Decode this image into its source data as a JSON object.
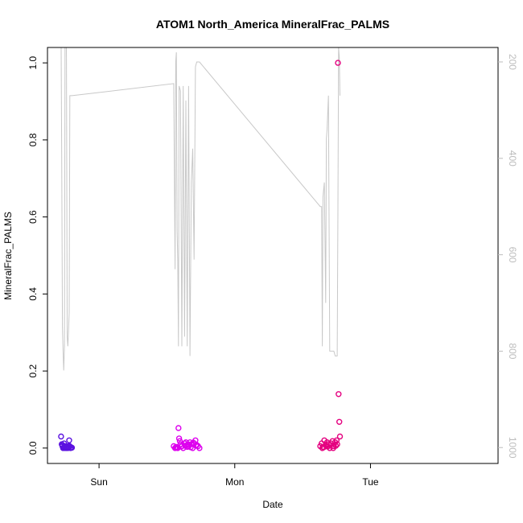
{
  "chart_data": {
    "type": "scatter",
    "title": "ATOM1 North_America MineralFrac_PALMS",
    "xlabel": "Date",
    "ylabel": "MineralFrac_PALMS",
    "x_tick_labels": [
      "Sun",
      "Mon",
      "Tue"
    ],
    "x_tick_values": [
      1,
      2,
      3
    ],
    "xlim": [
      0.62,
      3.94
    ],
    "ylim": [
      -0.04,
      1.04
    ],
    "y_ticks": [
      "0.0",
      "0.2",
      "0.4",
      "0.6",
      "0.8",
      "1.0"
    ],
    "y_tick_values": [
      0,
      0.2,
      0.4,
      0.6,
      0.8,
      1.0
    ],
    "right_axis": {
      "label": "",
      "ticks": [
        "200",
        "400",
        "600",
        "800",
        "1000"
      ],
      "tick_values": [
        200,
        400,
        600,
        800,
        1000
      ],
      "reversed": true,
      "range": [
        170,
        1033
      ],
      "color": "#bdbdbd"
    },
    "pressure_line": {
      "name": "",
      "color": "#c8c8c8",
      "x": [
        0.72,
        0.725,
        0.73,
        0.735,
        0.74,
        0.745,
        0.75,
        0.755,
        0.76,
        0.765,
        0.77,
        0.775,
        0.78,
        0.785,
        0.79,
        0.795,
        0.8,
        1.55,
        1.56,
        1.565,
        1.57,
        1.575,
        1.58,
        1.585,
        1.59,
        1.6,
        1.61,
        1.62,
        1.63,
        1.64,
        1.65,
        1.66,
        1.67,
        1.68,
        1.69,
        1.7,
        1.71,
        1.72,
        1.73,
        1.74,
        2.63,
        2.64,
        2.645,
        2.65,
        2.66,
        2.67,
        2.675,
        2.68,
        2.69,
        2.7,
        2.71,
        2.72,
        2.73,
        2.74,
        2.75,
        2.755,
        2.76,
        2.765,
        2.77,
        2.775
      ],
      "values": [
        140,
        400,
        750,
        800,
        840,
        790,
        100,
        70,
        190,
        770,
        790,
        760,
        720,
        270,
        270,
        270,
        270,
        245,
        630,
        200,
        180,
        550,
        610,
        790,
        250,
        260,
        790,
        250,
        770,
        280,
        790,
        250,
        810,
        450,
        380,
        610,
        210,
        200,
        200,
        200,
        500,
        500,
        790,
        480,
        450,
        700,
        360,
        340,
        270,
        800,
        800,
        800,
        800,
        810,
        810,
        810,
        500,
        170,
        190,
        270
      ]
    },
    "series": [
      {
        "name": "",
        "color": "#5b12e0",
        "x": [
          0.72,
          0.725,
          0.73,
          0.735,
          0.74,
          0.745,
          0.75,
          0.755,
          0.76,
          0.765,
          0.77,
          0.775,
          0.78,
          0.785,
          0.79,
          0.795,
          0.8,
          0.73,
          0.78,
          0.76,
          0.742,
          0.768
        ],
        "values": [
          0.03,
          0.01,
          0.005,
          0.0,
          0.002,
          0.005,
          0.0,
          0.001,
          0.003,
          0.005,
          0.0,
          0.002,
          0.02,
          0.004,
          0.0,
          0.002,
          0.001,
          0.008,
          0.006,
          0.0,
          0.012,
          0.003
        ]
      },
      {
        "name": "",
        "color": "#dd00ee",
        "x": [
          1.55,
          1.56,
          1.565,
          1.57,
          1.575,
          1.58,
          1.585,
          1.59,
          1.6,
          1.61,
          1.62,
          1.63,
          1.64,
          1.65,
          1.66,
          1.67,
          1.68,
          1.69,
          1.7,
          1.71,
          1.72,
          1.73,
          1.74,
          1.595,
          1.605,
          1.635,
          1.655,
          1.675,
          1.695,
          1.715
        ],
        "values": [
          0.005,
          0.0,
          0.002,
          0.003,
          0.001,
          0.0,
          0.052,
          0.025,
          0.01,
          0.005,
          0.0,
          0.012,
          0.015,
          0.003,
          0.005,
          0.015,
          0.01,
          0.0,
          0.012,
          0.02,
          0.008,
          0.005,
          0.0,
          0.018,
          0.004,
          0.006,
          0.01,
          0.002,
          0.014,
          0.006
        ]
      },
      {
        "name": "",
        "color": "#e4007f",
        "x": [
          2.63,
          2.64,
          2.645,
          2.65,
          2.66,
          2.67,
          2.675,
          2.68,
          2.69,
          2.7,
          2.71,
          2.72,
          2.73,
          2.74,
          2.75,
          2.755,
          2.76,
          2.765,
          2.77,
          2.775,
          2.655,
          2.685,
          2.705,
          2.725,
          2.745
        ],
        "values": [
          0.005,
          0.012,
          0.0,
          0.003,
          0.02,
          0.008,
          0.005,
          0.015,
          0.01,
          0.0,
          0.012,
          0.018,
          0.005,
          0.015,
          0.02,
          0.01,
          1.0,
          0.14,
          0.068,
          0.03,
          0.002,
          0.004,
          0.008,
          0.0,
          0.006
        ]
      }
    ],
    "grid": false,
    "legend": "none"
  }
}
